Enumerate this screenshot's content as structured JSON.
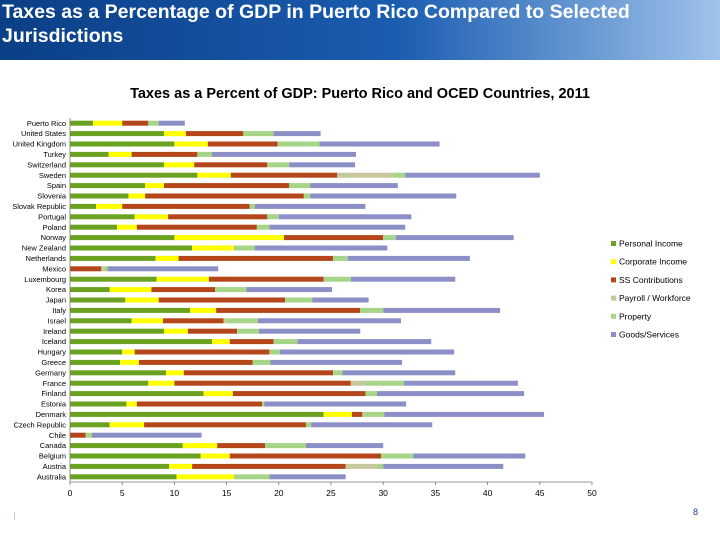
{
  "slide": {
    "title": "Taxes as a Percentage of GDP in Puerto Rico Compared to Selected Jurisdictions",
    "page_number": "8"
  },
  "chart_data": {
    "type": "bar",
    "orientation": "horizontal",
    "stacked": true,
    "title": "Taxes as a Percent of GDP: Puerto Rico and OCED Countries, 2011",
    "xlabel": "",
    "ylabel": "",
    "xlim": [
      0,
      50
    ],
    "xticks": [
      "0",
      "5",
      "10",
      "15",
      "20",
      "25",
      "30",
      "35",
      "40",
      "45",
      "50"
    ],
    "legend_position": "right",
    "grid": false,
    "categories": [
      "Puerto Rico",
      "United States",
      "United Kingdom",
      "Turkey",
      "Switzerland",
      "Sweden",
      "Spain",
      "Slovenia",
      "Slovak Republic",
      "Portugal",
      "Poland",
      "Norway",
      "New Zealand",
      "Netherlands",
      "Mexico",
      "Luxembourg",
      "Korea",
      "Japan",
      "Italy",
      "Israel",
      "Ireland",
      "Iceland",
      "Hungary",
      "Greece",
      "Germany",
      "France",
      "Finland",
      "Estonia",
      "Denmark",
      "Czech Republic",
      "Chile",
      "Canada",
      "Belgium",
      "Austria",
      "Australia"
    ],
    "series": [
      {
        "name": "Personal Income",
        "color": "#6aa121",
        "values": [
          2.2,
          9.0,
          10.0,
          3.7,
          9.0,
          12.2,
          7.2,
          5.6,
          2.5,
          6.2,
          4.5,
          10.0,
          11.7,
          8.2,
          0.0,
          8.3,
          3.8,
          5.3,
          11.5,
          5.9,
          9.0,
          13.6,
          5.0,
          4.8,
          9.2,
          7.5,
          12.8,
          5.4,
          24.3,
          3.8,
          0.0,
          10.8,
          12.5,
          9.5,
          10.2
        ]
      },
      {
        "name": "Corporate Income",
        "color": "#ffff00",
        "values": [
          2.8,
          2.1,
          3.2,
          2.2,
          2.9,
          3.2,
          1.8,
          1.6,
          2.5,
          3.2,
          1.9,
          10.5,
          4.0,
          2.2,
          0.0,
          5.0,
          4.0,
          3.2,
          2.5,
          3.0,
          2.3,
          1.7,
          1.2,
          1.8,
          1.7,
          2.5,
          2.8,
          1.0,
          2.7,
          3.3,
          0.0,
          3.3,
          2.8,
          2.2,
          5.5
        ]
      },
      {
        "name": "SS Contributions",
        "color": "#b5461a",
        "values": [
          2.5,
          5.5,
          6.7,
          6.3,
          7.0,
          10.2,
          12.0,
          15.2,
          12.2,
          9.5,
          11.5,
          9.5,
          0.0,
          14.8,
          3.0,
          11.0,
          6.1,
          12.1,
          13.8,
          5.8,
          4.7,
          4.2,
          12.9,
          10.9,
          14.3,
          16.9,
          12.7,
          12.0,
          1.0,
          15.5,
          1.5,
          4.6,
          14.5,
          14.7,
          0.0
        ]
      },
      {
        "name": "Payroll / Workforce",
        "color": "#c6c79c",
        "values": [
          0.0,
          0.0,
          0.0,
          0.0,
          0.0,
          5.4,
          0.0,
          0.0,
          0.0,
          0.0,
          0.0,
          0.0,
          0.0,
          0.0,
          0.3,
          0.0,
          0.0,
          0.0,
          0.0,
          0.3,
          0.0,
          0.0,
          0.0,
          0.0,
          0.0,
          1.4,
          0.0,
          0.0,
          0.2,
          0.0,
          0.0,
          0.0,
          0.0,
          3.0,
          0.0
        ]
      },
      {
        "name": "Property",
        "color": "#a6d587",
        "values": [
          1.0,
          2.9,
          4.0,
          1.4,
          2.1,
          1.1,
          2.0,
          0.6,
          0.5,
          1.1,
          1.2,
          1.2,
          2.0,
          1.4,
          0.3,
          2.6,
          3.0,
          2.6,
          2.2,
          3.0,
          2.1,
          2.3,
          1.0,
          1.7,
          0.9,
          3.7,
          1.1,
          0.2,
          1.9,
          0.5,
          0.6,
          3.9,
          3.1,
          0.6,
          3.4
        ]
      },
      {
        "name": "Goods/Services",
        "color": "#8b8fc5",
        "values": [
          2.5,
          4.5,
          11.5,
          13.8,
          6.3,
          12.9,
          8.4,
          14.0,
          10.6,
          12.7,
          13.0,
          11.3,
          12.7,
          11.7,
          10.6,
          10.0,
          8.2,
          5.4,
          11.2,
          13.7,
          9.7,
          12.8,
          16.7,
          12.6,
          10.8,
          10.9,
          14.1,
          13.6,
          15.3,
          11.6,
          10.5,
          7.4,
          10.7,
          11.5,
          7.3
        ]
      }
    ]
  }
}
